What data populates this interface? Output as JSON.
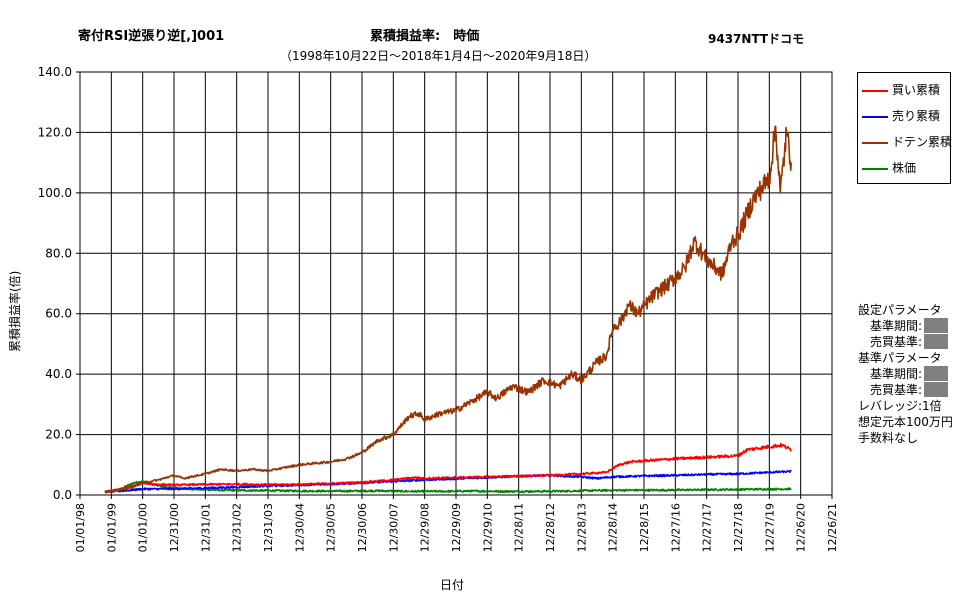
{
  "header": {
    "strategy": "寄付RSI逆張り逆[,]001",
    "metric": "累積損益率:　時価",
    "ticker": "9437NTTドコモ",
    "period": "（1998年10月22日〜2018年1月4日〜2020年9月18日）"
  },
  "chart_data": {
    "type": "line",
    "xlabel": "日付",
    "ylabel": "累積損益率(倍)",
    "ylim": [
      0,
      140
    ],
    "yticks": [
      "0.0",
      "20.0",
      "40.0",
      "60.0",
      "80.0",
      "100.0",
      "120.0",
      "140.0"
    ],
    "xticks": [
      "01/01/98",
      "01/01/99",
      "01/01/00",
      "12/31/00",
      "12/31/01",
      "12/31/02",
      "12/31/03",
      "12/30/04",
      "12/30/05",
      "12/30/06",
      "12/30/07",
      "12/29/08",
      "12/29/09",
      "12/29/10",
      "12/28/11",
      "12/28/12",
      "12/28/13",
      "12/28/14",
      "12/28/15",
      "12/27/16",
      "12/27/17",
      "12/27/18",
      "12/27/19",
      "12/26/20",
      "12/26/21"
    ],
    "grid": true,
    "legend_position": "right",
    "x_year_start": 1998,
    "series": [
      {
        "name": "買い累積",
        "color": "#ff0000",
        "points": [
          [
            1998.8,
            1
          ],
          [
            1999.3,
            2
          ],
          [
            1999.7,
            3
          ],
          [
            2000.0,
            4
          ],
          [
            2000.5,
            3.5
          ],
          [
            2001.0,
            3.3
          ],
          [
            2002.0,
            3.5
          ],
          [
            2003.0,
            3.6
          ],
          [
            2004.0,
            3.4
          ],
          [
            2005.0,
            3.5
          ],
          [
            2006.0,
            3.8
          ],
          [
            2007.0,
            4.2
          ],
          [
            2008.0,
            5.0
          ],
          [
            2008.7,
            5.8
          ],
          [
            2009.0,
            5.5
          ],
          [
            2010.0,
            5.8
          ],
          [
            2011.0,
            6.0
          ],
          [
            2012.0,
            6.3
          ],
          [
            2013.0,
            6.5
          ],
          [
            2014.0,
            7.0
          ],
          [
            2014.8,
            7.5
          ],
          [
            2015.2,
            10.0
          ],
          [
            2015.6,
            11.0
          ],
          [
            2016.0,
            11.3
          ],
          [
            2017.0,
            12.0
          ],
          [
            2018.0,
            12.5
          ],
          [
            2019.0,
            13.0
          ],
          [
            2019.3,
            15.0
          ],
          [
            2020.0,
            16.0
          ],
          [
            2020.4,
            16.5
          ],
          [
            2020.7,
            15.0
          ]
        ]
      },
      {
        "name": "売り累積",
        "color": "#0000ff",
        "points": [
          [
            1998.8,
            1
          ],
          [
            1999.5,
            1.5
          ],
          [
            2000.0,
            2.0
          ],
          [
            2001.0,
            2.0
          ],
          [
            2002.0,
            2.3
          ],
          [
            2003.0,
            2.6
          ],
          [
            2004.0,
            3.0
          ],
          [
            2005.0,
            3.3
          ],
          [
            2006.0,
            3.6
          ],
          [
            2007.0,
            4.0
          ],
          [
            2008.0,
            4.5
          ],
          [
            2009.0,
            5.0
          ],
          [
            2010.0,
            5.4
          ],
          [
            2011.0,
            5.8
          ],
          [
            2012.0,
            6.2
          ],
          [
            2013.0,
            6.5
          ],
          [
            2014.0,
            6.0
          ],
          [
            2014.5,
            5.5
          ],
          [
            2015.0,
            6.0
          ],
          [
            2016.0,
            6.3
          ],
          [
            2017.0,
            6.5
          ],
          [
            2018.0,
            6.8
          ],
          [
            2019.0,
            7.0
          ],
          [
            2020.0,
            7.5
          ],
          [
            2020.7,
            7.8
          ]
        ]
      },
      {
        "name": "ドテン累積",
        "color": "#993300",
        "points": [
          [
            1998.8,
            1
          ],
          [
            1999.5,
            2
          ],
          [
            2000.0,
            4
          ],
          [
            2000.5,
            5
          ],
          [
            2001.0,
            6.5
          ],
          [
            2001.3,
            5.5
          ],
          [
            2002.0,
            7
          ],
          [
            2002.5,
            8.5
          ],
          [
            2003.0,
            8.0
          ],
          [
            2003.5,
            8.5
          ],
          [
            2004.0,
            8.0
          ],
          [
            2004.5,
            9
          ],
          [
            2005.0,
            10
          ],
          [
            2005.5,
            10.5
          ],
          [
            2006.0,
            11
          ],
          [
            2006.5,
            12
          ],
          [
            2007.0,
            14
          ],
          [
            2007.5,
            18
          ],
          [
            2008.0,
            20
          ],
          [
            2008.5,
            26
          ],
          [
            2008.8,
            27
          ],
          [
            2009.0,
            25
          ],
          [
            2009.5,
            27
          ],
          [
            2010.0,
            28
          ],
          [
            2010.5,
            31
          ],
          [
            2011.0,
            34
          ],
          [
            2011.3,
            32
          ],
          [
            2011.8,
            36
          ],
          [
            2012.3,
            34
          ],
          [
            2012.8,
            38
          ],
          [
            2013.3,
            36
          ],
          [
            2013.7,
            40
          ],
          [
            2014.0,
            38
          ],
          [
            2014.5,
            44
          ],
          [
            2014.8,
            46
          ],
          [
            2015.0,
            55
          ],
          [
            2015.3,
            58
          ],
          [
            2015.5,
            63
          ],
          [
            2015.8,
            60
          ],
          [
            2016.3,
            66
          ],
          [
            2016.8,
            70
          ],
          [
            2017.3,
            75
          ],
          [
            2017.6,
            84
          ],
          [
            2018.0,
            78
          ],
          [
            2018.5,
            73
          ],
          [
            2018.8,
            84
          ],
          [
            2019.0,
            86
          ],
          [
            2019.5,
            98
          ],
          [
            2020.0,
            105
          ],
          [
            2020.2,
            122
          ],
          [
            2020.35,
            100
          ],
          [
            2020.55,
            120
          ],
          [
            2020.7,
            110
          ]
        ]
      },
      {
        "name": "株価",
        "color": "#008000",
        "points": [
          [
            1998.8,
            1
          ],
          [
            1999.3,
            2
          ],
          [
            1999.7,
            4
          ],
          [
            2000.0,
            4.5
          ],
          [
            2000.3,
            3.5
          ],
          [
            2000.8,
            2.5
          ],
          [
            2001.5,
            2.0
          ],
          [
            2002.5,
            1.6
          ],
          [
            2003.5,
            1.5
          ],
          [
            2004.5,
            1.4
          ],
          [
            2005.5,
            1.3
          ],
          [
            2006.5,
            1.3
          ],
          [
            2007.5,
            1.4
          ],
          [
            2008.5,
            1.2
          ],
          [
            2009.5,
            1.2
          ],
          [
            2010.5,
            1.3
          ],
          [
            2011.5,
            1.2
          ],
          [
            2012.5,
            1.2
          ],
          [
            2013.5,
            1.3
          ],
          [
            2014.5,
            1.5
          ],
          [
            2015.5,
            1.6
          ],
          [
            2016.5,
            1.6
          ],
          [
            2017.5,
            1.7
          ],
          [
            2018.5,
            1.8
          ],
          [
            2019.5,
            1.9
          ],
          [
            2020.7,
            2.0
          ]
        ]
      }
    ]
  },
  "params": {
    "settings_title": "設定パラメータ",
    "settings_period": "基準期間:",
    "settings_trade": "売買基準:",
    "base_title": "基準パラメータ",
    "base_period": "基準期間:",
    "base_trade": "売買基準:",
    "leverage": "レバレッジ:1倍",
    "capital": "想定元本100万円",
    "fee": "手数料なし"
  }
}
